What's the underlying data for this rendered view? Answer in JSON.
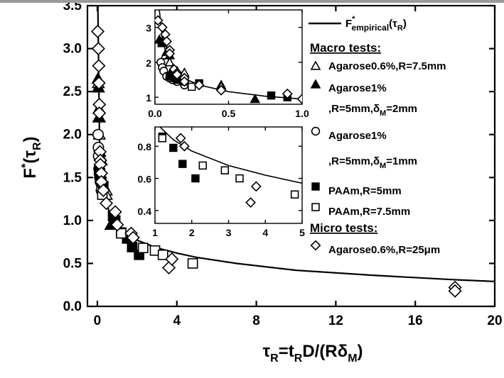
{
  "chart_data": {
    "type": "scatter",
    "title": "",
    "xlabel": "τ_R=t_R D/(Rδ_M)",
    "ylabel": "F*(τ_R)",
    "xlim": [
      -0.5,
      20
    ],
    "ylim": [
      0,
      3.5
    ],
    "x_ticks": [
      0,
      4,
      8,
      12,
      16,
      20
    ],
    "y_ticks": [
      0.0,
      0.5,
      1.0,
      1.5,
      2.0,
      2.5,
      3.0,
      3.5
    ],
    "x_tick_labels": [
      "0",
      "4",
      "8",
      "12",
      "16",
      "20"
    ],
    "y_tick_labels": [
      "0.0",
      "0.5",
      "1.0",
      "1.5",
      "2.0",
      "2.5",
      "3.0",
      "3.5"
    ],
    "legend": {
      "position": "top-right",
      "curve_label": "F*empirical(τR)",
      "macro_header": "Macro tests:",
      "micro_header": "Micro tests:",
      "entries": [
        {
          "line1": "Agarose0.6%,R=7.5mm",
          "line2": ""
        },
        {
          "line1": "Agarose1%",
          "line2": ",R=5mm,δM=2mm"
        },
        {
          "line1": "Agarose1%",
          "line2": ",R=5mm,δM=1mm"
        },
        {
          "line1": "PAAm,R=5mm",
          "line2": ""
        },
        {
          "line1": "PAAm,R=7.5mm",
          "line2": ""
        },
        {
          "line1": "Agarose0.6%,R=25μm",
          "line2": ""
        }
      ]
    },
    "curve": {
      "name": "F*empirical(τR)",
      "x": [
        0.03,
        0.05,
        0.08,
        0.12,
        0.2,
        0.3,
        0.5,
        0.75,
        1.0,
        1.5,
        2.0,
        3.0,
        4.0,
        5.0,
        7.0,
        10.0,
        14.0,
        18.0,
        20.0
      ],
      "y": [
        3.5,
        2.67,
        2.18,
        1.85,
        1.54,
        1.35,
        1.16,
        1.03,
        0.95,
        0.84,
        0.77,
        0.68,
        0.62,
        0.57,
        0.5,
        0.42,
        0.36,
        0.31,
        0.29
      ]
    },
    "series": [
      {
        "name": "Agarose0.6%,R=7.5mm",
        "marker": "triangle-open",
        "x": [
          0.05,
          0.05,
          0.07,
          0.1,
          0.15,
          0.2,
          0.45,
          0.45
        ],
        "y": [
          2.6,
          2.55,
          2.2,
          2.0,
          1.75,
          1.7,
          1.35,
          1.3
        ]
      },
      {
        "name": "Agarose1%,R=5mm,δM=2mm",
        "marker": "triangle-filled",
        "x": [
          0.03,
          0.05,
          0.08,
          0.1,
          0.12,
          0.15,
          0.2,
          0.68
        ],
        "y": [
          2.65,
          2.55,
          2.3,
          2.2,
          1.8,
          1.6,
          1.5,
          0.95
        ]
      },
      {
        "name": "Agarose1%,R=5mm,δM=1mm",
        "marker": "circle-open",
        "x": [
          0.04,
          0.05,
          0.06,
          0.08,
          0.1,
          0.12,
          0.15,
          0.2
        ],
        "y": [
          2.0,
          1.85,
          1.75,
          1.6,
          1.55,
          1.5,
          1.45,
          1.35
        ]
      },
      {
        "name": "PAAm,R=5mm",
        "marker": "square-filled",
        "x": [
          0.1,
          0.13,
          0.15,
          0.2,
          0.3,
          0.79,
          0.9,
          1.2,
          1.5,
          1.75,
          2.1
        ],
        "y": [
          1.6,
          1.55,
          1.5,
          1.45,
          1.4,
          1.05,
          1.0,
          0.86,
          0.79,
          0.69,
          0.6
        ]
      },
      {
        "name": "PAAm,R=7.5mm",
        "marker": "square-open",
        "x": [
          0.25,
          1.2,
          2.3,
          2.9,
          3.3,
          4.8
        ],
        "y": [
          1.3,
          0.85,
          0.68,
          0.65,
          0.6,
          0.5
        ]
      },
      {
        "name": "Agarose0.6%,R=25μm",
        "marker": "diamond-open",
        "x": [
          0.02,
          0.05,
          0.07,
          0.08,
          0.1,
          0.1,
          0.13,
          0.15,
          0.15,
          0.2,
          0.2,
          0.3,
          0.45,
          0.9,
          1.0,
          1.7,
          1.8,
          3.6,
          3.75,
          18.0,
          18.0
        ],
        "y": [
          3.2,
          3.0,
          2.8,
          2.6,
          2.35,
          2.25,
          1.8,
          1.7,
          1.65,
          1.55,
          1.45,
          1.35,
          1.2,
          1.1,
          0.95,
          0.85,
          0.8,
          0.45,
          0.55,
          0.22,
          0.18
        ]
      }
    ],
    "insets": [
      {
        "position": "upper",
        "xlim": [
          0,
          1.0
        ],
        "ylim": [
          0.8,
          3.5
        ],
        "x_ticks": [
          0.0,
          0.5,
          1.0
        ],
        "y_ticks": [
          1,
          2,
          3
        ],
        "x_tick_labels": [
          "0.0",
          "0.5",
          "1.0"
        ],
        "y_tick_labels": [
          "1",
          "2",
          "3"
        ]
      },
      {
        "position": "lower",
        "xlim": [
          1,
          5
        ],
        "ylim": [
          0.32,
          0.92
        ],
        "x_ticks": [
          1,
          2,
          3,
          4,
          5
        ],
        "y_ticks": [
          0.4,
          0.6,
          0.8
        ],
        "x_tick_labels": [
          "1",
          "2",
          "3",
          "4",
          "5"
        ],
        "y_tick_labels": [
          "0.4",
          "0.6",
          "0.8"
        ]
      }
    ]
  }
}
